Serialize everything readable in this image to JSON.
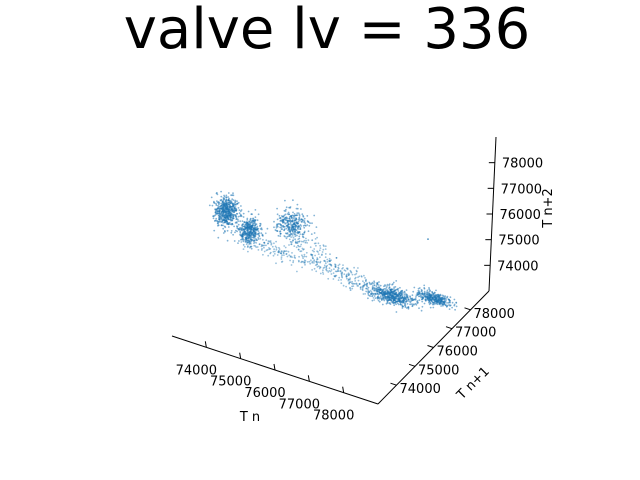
{
  "chart_data": {
    "type": "scatter",
    "projection": "3d",
    "title": "valve lv = 336",
    "xlabel": "T n",
    "ylabel": "T n+1",
    "zlabel": "T n+2",
    "xlim": [
      73000,
      79000
    ],
    "ylim": [
      73000,
      79000
    ],
    "zlim": [
      73000,
      79000
    ],
    "x_ticks": [
      "74000",
      "75000",
      "76000",
      "77000",
      "78000"
    ],
    "y_ticks": [
      "74000",
      "75000",
      "76000",
      "77000",
      "78000"
    ],
    "z_ticks": [
      "74000",
      "75000",
      "76000",
      "77000",
      "78000"
    ],
    "grid": false,
    "marker_color": "#1f77b4",
    "clusters": [
      {
        "name": "",
        "center": [
          73800,
          74200,
          77300
        ],
        "spread": [
          160,
          160,
          260
        ],
        "count": 520
      },
      {
        "name": "",
        "center": [
          74300,
          74500,
          76600
        ],
        "spread": [
          140,
          140,
          200
        ],
        "count": 380
      },
      {
        "name": "",
        "center": [
          75300,
          75000,
          76900
        ],
        "spread": [
          220,
          200,
          220
        ],
        "count": 300
      },
      {
        "name": "",
        "center": [
          77300,
          76900,
          73600
        ],
        "spread": [
          320,
          140,
          90
        ],
        "count": 520
      },
      {
        "name": "",
        "center": [
          78300,
          77300,
          73650
        ],
        "spread": [
          240,
          110,
          70
        ],
        "count": 340
      }
    ],
    "paths": [
      {
        "from": [
          74300,
          74400,
          76200
        ],
        "to": [
          75600,
          76200,
          74600
        ],
        "count": 180
      },
      {
        "from": [
          75600,
          76200,
          74600
        ],
        "to": [
          77000,
          76800,
          73700
        ],
        "count": 200
      },
      {
        "from": [
          75000,
          75200,
          76300
        ],
        "to": [
          75800,
          75800,
          75300
        ],
        "count": 90
      }
    ],
    "outliers": [
      [
        78600,
        76200,
        76900
      ],
      [
        76200,
        75800,
        75400
      ]
    ]
  }
}
